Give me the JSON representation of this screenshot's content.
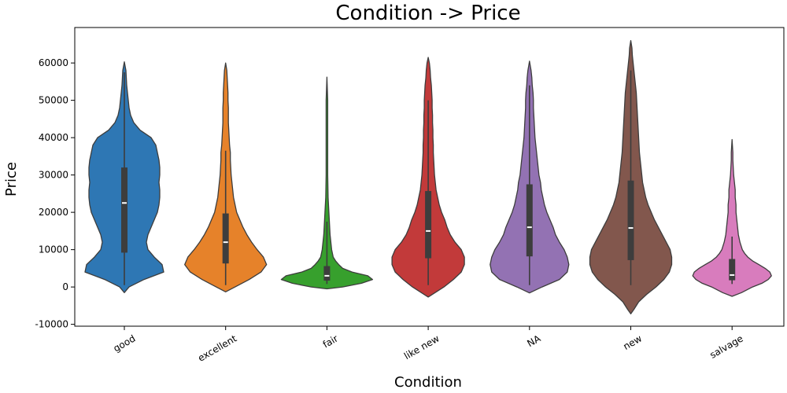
{
  "chart_data": {
    "type": "violin",
    "title": "Condition -> Price",
    "xlabel": "Condition",
    "ylabel": "Price",
    "ylim": [
      -10500,
      69500
    ],
    "yticks": [
      -10000,
      0,
      10000,
      20000,
      30000,
      40000,
      50000,
      60000
    ],
    "grid": false,
    "categories": [
      "good",
      "excellent",
      "fair",
      "like new",
      "NA",
      "new",
      "salvage"
    ],
    "colors": [
      "#2e77b4",
      "#e6822a",
      "#37a02d",
      "#c23a3a",
      "#9372b3",
      "#82574d",
      "#d87cbd"
    ],
    "violins": [
      {
        "name": "good",
        "box": {
          "whisker_low": 500,
          "q1": 9200,
          "median": 22500,
          "q3": 32000,
          "whisker_high": 57500
        },
        "min": -1500,
        "max": 60300,
        "profile": [
          [
            -1500,
            0
          ],
          [
            0,
            6
          ],
          [
            2000,
            25
          ],
          [
            4000,
            50
          ],
          [
            6000,
            48
          ],
          [
            8000,
            38
          ],
          [
            10000,
            30
          ],
          [
            12000,
            28
          ],
          [
            14000,
            30
          ],
          [
            16000,
            34
          ],
          [
            18000,
            38
          ],
          [
            20000,
            42
          ],
          [
            22000,
            44
          ],
          [
            24000,
            45
          ],
          [
            26000,
            45
          ],
          [
            28000,
            44
          ],
          [
            30000,
            45
          ],
          [
            32000,
            45
          ],
          [
            34000,
            44
          ],
          [
            36000,
            42
          ],
          [
            38000,
            40
          ],
          [
            40000,
            34
          ],
          [
            42000,
            20
          ],
          [
            44000,
            12
          ],
          [
            46000,
            8
          ],
          [
            48000,
            6
          ],
          [
            50000,
            5
          ],
          [
            52000,
            4
          ],
          [
            54000,
            3
          ],
          [
            56000,
            2.5
          ],
          [
            58000,
            2
          ],
          [
            60300,
            0
          ]
        ]
      },
      {
        "name": "excellent",
        "box": {
          "whisker_low": 500,
          "q1": 6300,
          "median": 12000,
          "q3": 19700,
          "whisker_high": 36500
        },
        "min": -1300,
        "max": 60000,
        "profile": [
          [
            -1300,
            0
          ],
          [
            0,
            12
          ],
          [
            2000,
            30
          ],
          [
            4000,
            45
          ],
          [
            6000,
            52
          ],
          [
            8000,
            48
          ],
          [
            10000,
            40
          ],
          [
            12000,
            33
          ],
          [
            14000,
            27
          ],
          [
            16000,
            22
          ],
          [
            18000,
            18
          ],
          [
            20000,
            14
          ],
          [
            22000,
            12
          ],
          [
            24000,
            10
          ],
          [
            26000,
            9
          ],
          [
            28000,
            8
          ],
          [
            30000,
            7
          ],
          [
            32000,
            6.5
          ],
          [
            34000,
            6
          ],
          [
            36000,
            6
          ],
          [
            38000,
            5
          ],
          [
            40000,
            4.5
          ],
          [
            42000,
            4
          ],
          [
            44000,
            3.5
          ],
          [
            46000,
            3.5
          ],
          [
            48000,
            3.5
          ],
          [
            50000,
            3
          ],
          [
            52000,
            3
          ],
          [
            54000,
            2.5
          ],
          [
            56000,
            2
          ],
          [
            58000,
            1.5
          ],
          [
            60000,
            0
          ]
        ]
      },
      {
        "name": "fair",
        "box": {
          "whisker_low": 800,
          "q1": 1700,
          "median": 3000,
          "q3": 5600,
          "whisker_high": 17500
        },
        "min": -500,
        "max": 56200,
        "profile": [
          [
            -500,
            0
          ],
          [
            0,
            20
          ],
          [
            1000,
            44
          ],
          [
            2000,
            58
          ],
          [
            3000,
            52
          ],
          [
            4000,
            32
          ],
          [
            5000,
            20
          ],
          [
            6000,
            15
          ],
          [
            7000,
            11
          ],
          [
            8000,
            8
          ],
          [
            10000,
            6
          ],
          [
            12000,
            5
          ],
          [
            14000,
            4
          ],
          [
            16000,
            3.5
          ],
          [
            18000,
            3
          ],
          [
            20000,
            2.5
          ],
          [
            24000,
            1.5
          ],
          [
            30000,
            1
          ],
          [
            40000,
            1
          ],
          [
            50000,
            1
          ],
          [
            56200,
            0
          ]
        ]
      },
      {
        "name": "like new",
        "box": {
          "whisker_low": 500,
          "q1": 7700,
          "median": 15000,
          "q3": 25700,
          "whisker_high": 50000
        },
        "min": -2700,
        "max": 61500,
        "profile": [
          [
            -2700,
            0
          ],
          [
            0,
            20
          ],
          [
            2000,
            32
          ],
          [
            4000,
            42
          ],
          [
            6000,
            46
          ],
          [
            8000,
            46
          ],
          [
            10000,
            42
          ],
          [
            12000,
            34
          ],
          [
            14000,
            28
          ],
          [
            16000,
            24
          ],
          [
            18000,
            21
          ],
          [
            20000,
            17
          ],
          [
            22000,
            14
          ],
          [
            24000,
            12
          ],
          [
            26000,
            10
          ],
          [
            28000,
            9
          ],
          [
            30000,
            8
          ],
          [
            32000,
            7.5
          ],
          [
            34000,
            7
          ],
          [
            36000,
            6.5
          ],
          [
            38000,
            6.5
          ],
          [
            40000,
            6
          ],
          [
            42000,
            6
          ],
          [
            44000,
            5.5
          ],
          [
            46000,
            5.5
          ],
          [
            48000,
            5
          ],
          [
            50000,
            5
          ],
          [
            52000,
            4.5
          ],
          [
            54000,
            4
          ],
          [
            56000,
            3
          ],
          [
            58000,
            2.5
          ],
          [
            60000,
            1.5
          ],
          [
            61500,
            0
          ]
        ]
      },
      {
        "name": "NA",
        "box": {
          "whisker_low": 500,
          "q1": 8200,
          "median": 16000,
          "q3": 27500,
          "whisker_high": 54000
        },
        "min": -1600,
        "max": 60500,
        "profile": [
          [
            -1600,
            0
          ],
          [
            0,
            16
          ],
          [
            2000,
            38
          ],
          [
            4000,
            48
          ],
          [
            6000,
            50
          ],
          [
            8000,
            48
          ],
          [
            10000,
            44
          ],
          [
            12000,
            38
          ],
          [
            14000,
            33
          ],
          [
            16000,
            30
          ],
          [
            18000,
            26
          ],
          [
            20000,
            22
          ],
          [
            22000,
            19
          ],
          [
            24000,
            17
          ],
          [
            26000,
            15
          ],
          [
            28000,
            14
          ],
          [
            30000,
            12
          ],
          [
            32000,
            11
          ],
          [
            34000,
            10
          ],
          [
            36000,
            9
          ],
          [
            38000,
            8
          ],
          [
            40000,
            7
          ],
          [
            42000,
            6.5
          ],
          [
            44000,
            6
          ],
          [
            46000,
            5.5
          ],
          [
            48000,
            5
          ],
          [
            50000,
            5
          ],
          [
            52000,
            4.5
          ],
          [
            54000,
            3.5
          ],
          [
            56000,
            3
          ],
          [
            58000,
            2
          ],
          [
            60500,
            0
          ]
        ]
      },
      {
        "name": "new",
        "box": {
          "whisker_low": 500,
          "q1": 7200,
          "median": 15800,
          "q3": 28500,
          "whisker_high": 58000
        },
        "min": -7200,
        "max": 66000,
        "profile": [
          [
            -7200,
            0
          ],
          [
            -6000,
            4
          ],
          [
            -4000,
            10
          ],
          [
            -2000,
            20
          ],
          [
            0,
            32
          ],
          [
            2000,
            42
          ],
          [
            4000,
            49
          ],
          [
            6000,
            52
          ],
          [
            8000,
            52
          ],
          [
            10000,
            50
          ],
          [
            12000,
            45
          ],
          [
            14000,
            40
          ],
          [
            16000,
            35
          ],
          [
            18000,
            30
          ],
          [
            20000,
            26
          ],
          [
            22000,
            22
          ],
          [
            24000,
            19
          ],
          [
            26000,
            17
          ],
          [
            28000,
            15
          ],
          [
            30000,
            14
          ],
          [
            32000,
            13
          ],
          [
            34000,
            12
          ],
          [
            36000,
            11
          ],
          [
            38000,
            10.5
          ],
          [
            40000,
            10
          ],
          [
            42000,
            9.5
          ],
          [
            44000,
            9
          ],
          [
            46000,
            8.5
          ],
          [
            48000,
            8
          ],
          [
            50000,
            7.5
          ],
          [
            52000,
            7
          ],
          [
            54000,
            6
          ],
          [
            56000,
            5
          ],
          [
            58000,
            4
          ],
          [
            60000,
            3
          ],
          [
            62000,
            2
          ],
          [
            64000,
            1.5
          ],
          [
            66000,
            0
          ]
        ]
      },
      {
        "name": "salvage",
        "box": {
          "whisker_low": 800,
          "q1": 1800,
          "median": 3200,
          "q3": 7500,
          "whisker_high": 13500
        },
        "min": -2500,
        "max": 39500,
        "profile": [
          [
            -2500,
            0
          ],
          [
            -1500,
            12
          ],
          [
            0,
            26
          ],
          [
            1000,
            38
          ],
          [
            2000,
            46
          ],
          [
            3000,
            50
          ],
          [
            4000,
            48
          ],
          [
            5000,
            42
          ],
          [
            6000,
            34
          ],
          [
            7000,
            26
          ],
          [
            8000,
            20
          ],
          [
            9000,
            16
          ],
          [
            10000,
            13
          ],
          [
            12000,
            10
          ],
          [
            14000,
            8
          ],
          [
            16000,
            7
          ],
          [
            18000,
            6
          ],
          [
            20000,
            5
          ],
          [
            22000,
            5
          ],
          [
            24000,
            4
          ],
          [
            26000,
            4
          ],
          [
            28000,
            3
          ],
          [
            30000,
            2
          ],
          [
            32000,
            1.5
          ],
          [
            34000,
            1
          ],
          [
            36000,
            1
          ],
          [
            39500,
            0
          ]
        ]
      }
    ]
  }
}
